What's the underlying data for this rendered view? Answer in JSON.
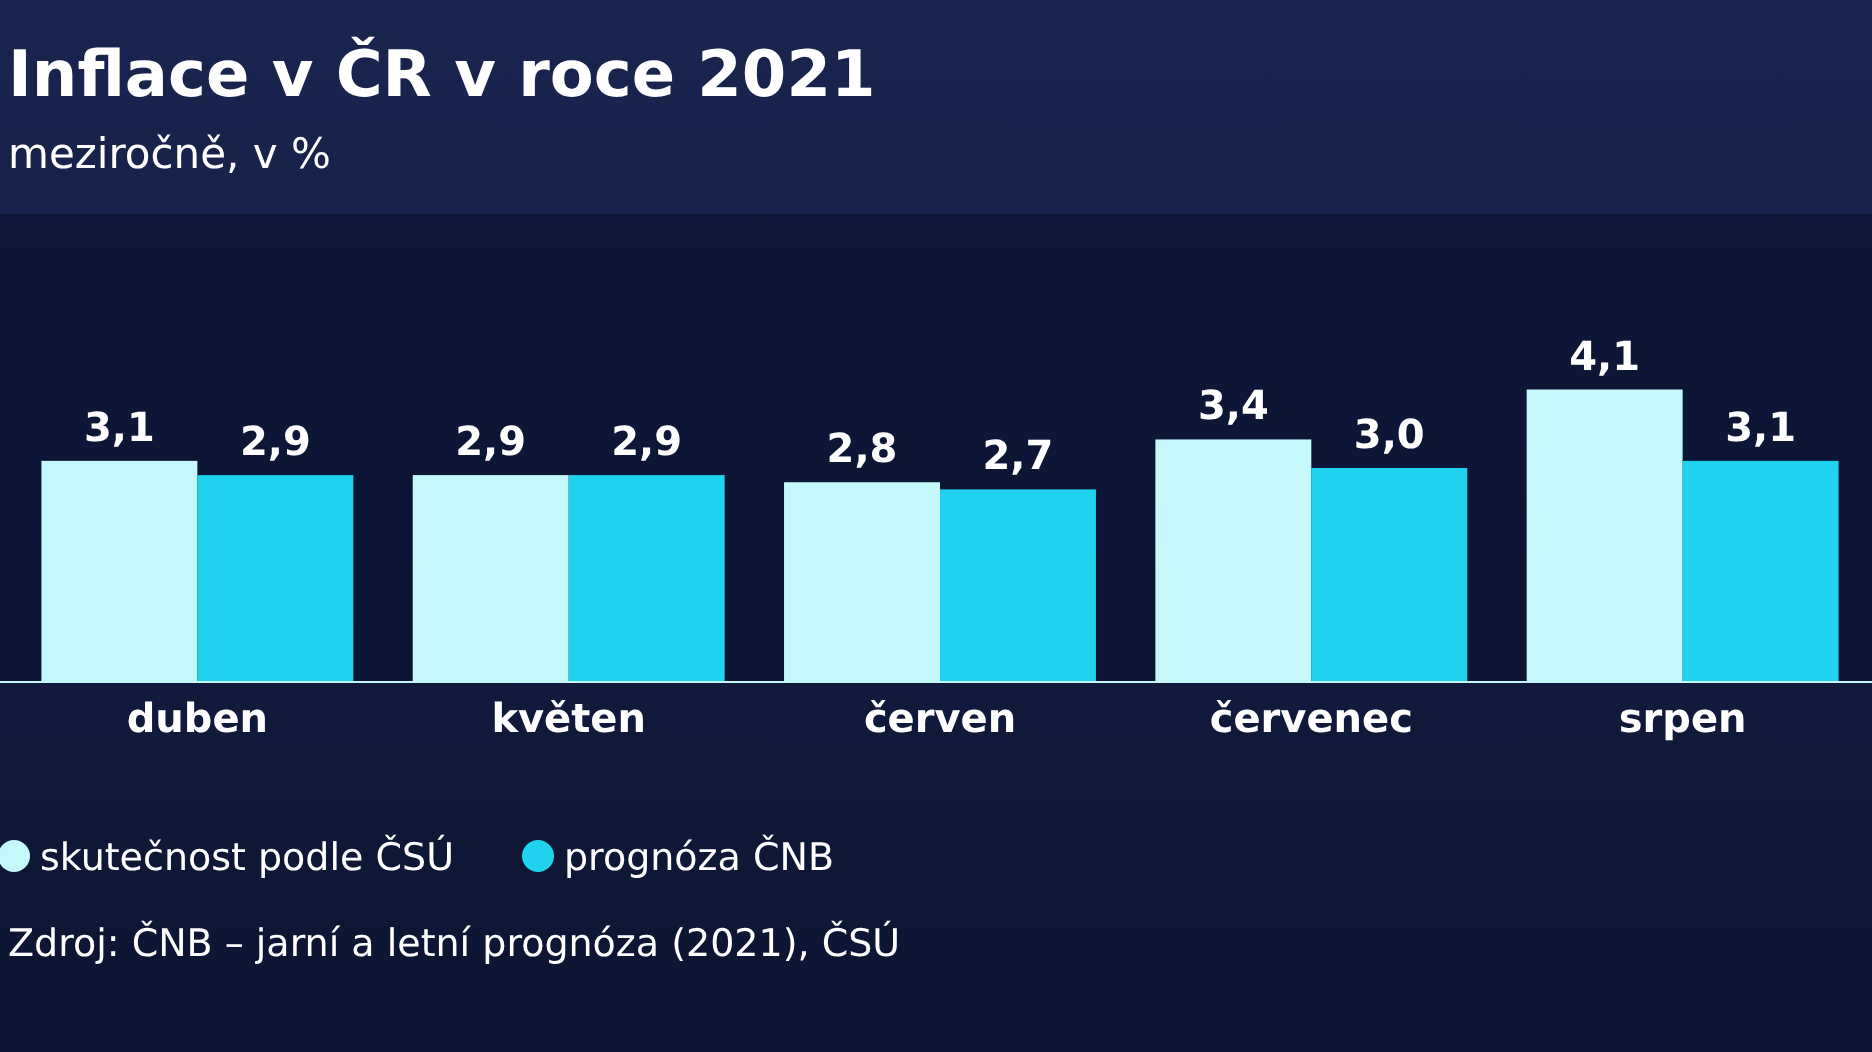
{
  "chart_data": {
    "type": "bar",
    "title": "Inflace v ČR v roce 2021",
    "subtitle": "meziročně, v %",
    "categories": [
      "duben",
      "květen",
      "červen",
      "červenec",
      "srpen"
    ],
    "series": [
      {
        "name": "skutečnost podle ČSÚ",
        "color": "#c4f8fb",
        "values": [
          3.1,
          2.9,
          2.8,
          3.4,
          4.1
        ],
        "value_labels": [
          "3,1",
          "2,9",
          "2,8",
          "3,4",
          "4,1"
        ]
      },
      {
        "name": "prognóza ČNB",
        "color": "#1fd3ee",
        "values": [
          2.9,
          2.9,
          2.7,
          3.0,
          3.1
        ],
        "value_labels": [
          "2,9",
          "2,9",
          "2,7",
          "3,0",
          "3,1"
        ]
      }
    ],
    "tick_labels": "x",
    "legend": "bottom left",
    "annotations": [
      "Zdroj: ČNB – jarní a letní prognóza (2021), ČSÚ"
    ]
  }
}
